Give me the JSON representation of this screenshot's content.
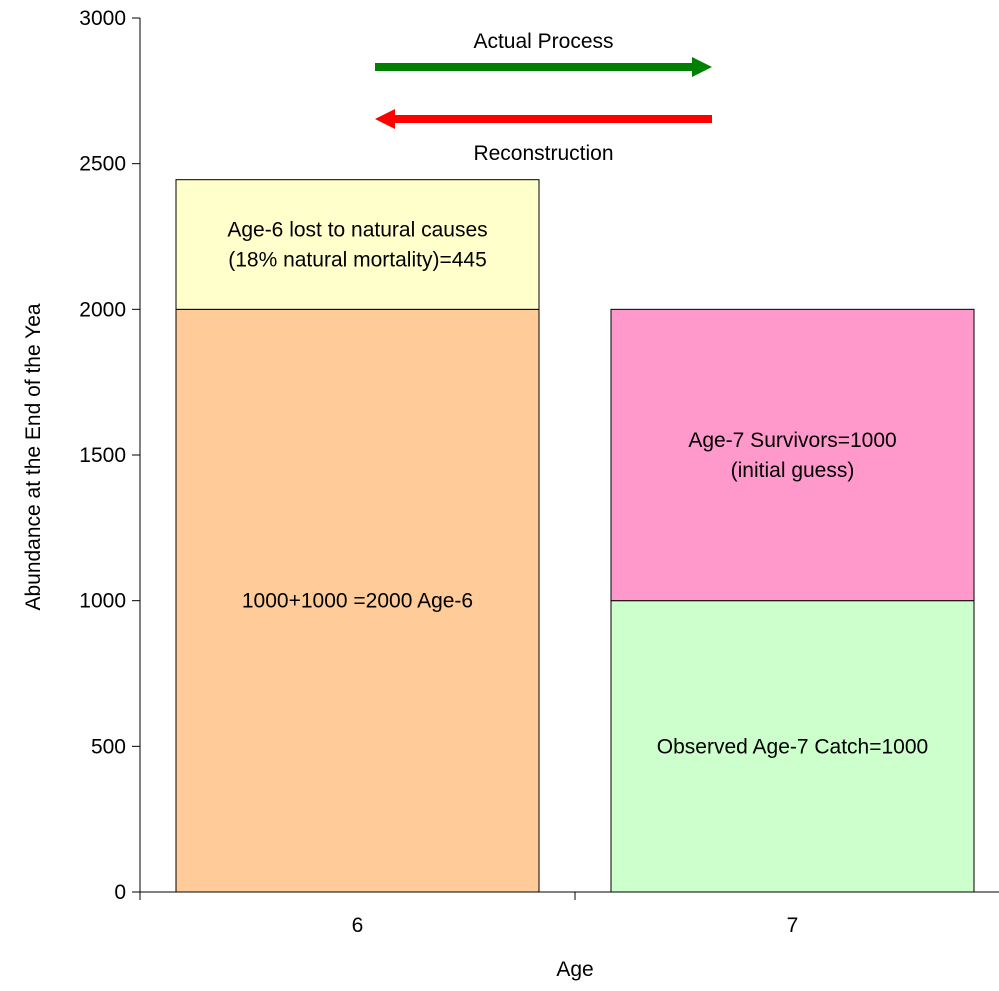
{
  "chart_data": {
    "type": "bar",
    "stacked": true,
    "xlabel": "Age",
    "ylabel": "Abundance at the End of the Yea",
    "ylim": [
      0,
      3000
    ],
    "yticks": [
      0,
      500,
      1000,
      1500,
      2000,
      2500,
      3000
    ],
    "grid": false,
    "categories": [
      "6",
      "7"
    ],
    "bars": [
      {
        "category": "6",
        "segments": [
          {
            "value": 2000,
            "color": "#ffcc99",
            "label_lines": [
              "1000+1000 =2000 Age-6"
            ]
          },
          {
            "value": 445,
            "color": "#ffffcc",
            "label_lines": [
              "Age-6 lost to natural causes",
              "(18% natural mortality)=445"
            ]
          }
        ]
      },
      {
        "category": "7",
        "segments": [
          {
            "value": 1000,
            "color": "#ccffcc",
            "label_lines": [
              "Observed Age-7 Catch=1000"
            ]
          },
          {
            "value": 1000,
            "color": "#ff99cc",
            "label_lines": [
              "Age-7 Survivors=1000",
              "(initial guess)"
            ]
          }
        ]
      }
    ],
    "annotations": [
      {
        "text": "Actual Process",
        "direction": "right",
        "color": "#008000"
      },
      {
        "text": "Reconstruction",
        "direction": "left",
        "color": "#ff0000"
      }
    ]
  }
}
